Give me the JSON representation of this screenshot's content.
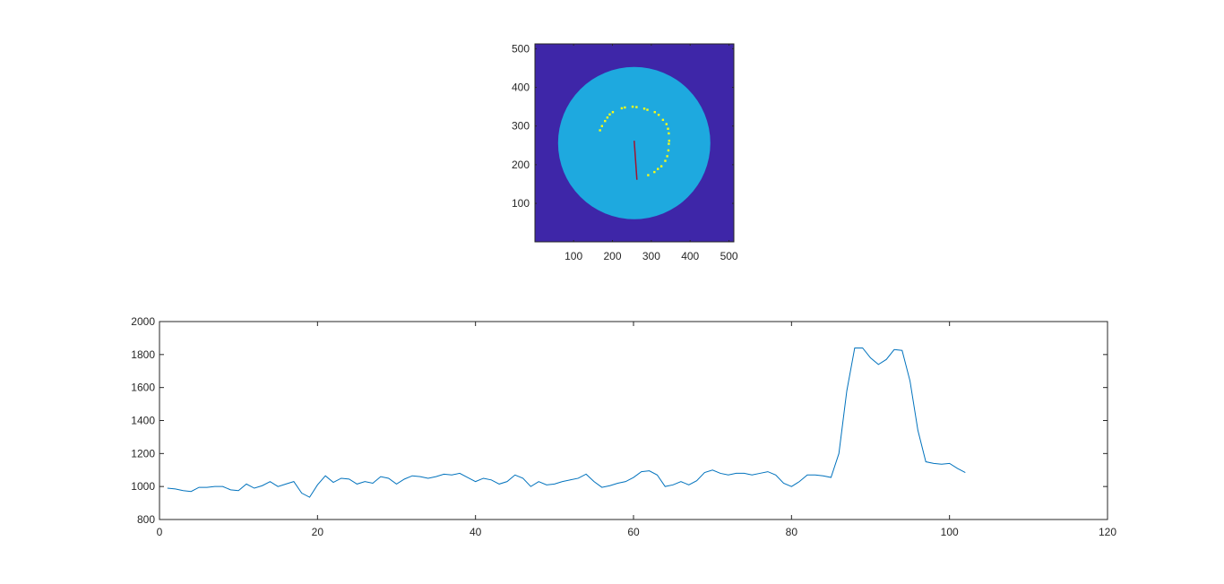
{
  "chart_data": [
    {
      "type": "heatmap",
      "title": "",
      "xlabel": "",
      "ylabel": "",
      "xlim": [
        0.5,
        512.5
      ],
      "ylim": [
        0.5,
        512.5
      ],
      "x_ticks": [
        100,
        200,
        300,
        400,
        500
      ],
      "y_ticks": [
        100,
        200,
        300,
        400,
        500
      ],
      "grid": false,
      "colors": {
        "background": "#3e26a8",
        "disk": "#1ea9df",
        "markers": "#f9fb15",
        "line": "#a2142f",
        "axis": "#262626"
      },
      "disk": {
        "center": [
          256,
          256
        ],
        "radius": 196
      },
      "marker_points": [
        [
          168,
          289
        ],
        [
          173,
          300
        ],
        [
          181,
          313
        ],
        [
          187,
          322
        ],
        [
          193,
          330
        ],
        [
          201,
          336
        ],
        [
          224,
          346
        ],
        [
          232,
          348
        ],
        [
          252,
          350
        ],
        [
          262,
          349
        ],
        [
          282,
          345
        ],
        [
          290,
          342
        ],
        [
          309,
          336
        ],
        [
          319,
          329
        ],
        [
          330,
          316
        ],
        [
          339,
          305
        ],
        [
          343,
          293
        ],
        [
          345,
          281
        ],
        [
          346,
          262
        ],
        [
          345,
          254
        ],
        [
          344,
          237
        ],
        [
          341,
          222
        ],
        [
          336,
          210
        ],
        [
          326,
          196
        ],
        [
          317,
          189
        ],
        [
          308,
          181
        ],
        [
          292,
          173
        ]
      ],
      "line_segment": [
        [
          256,
          262
        ],
        [
          263,
          161
        ]
      ]
    },
    {
      "type": "line",
      "title": "",
      "xlabel": "",
      "ylabel": "",
      "xlim": [
        0,
        120
      ],
      "ylim": [
        800,
        2000
      ],
      "x_ticks": [
        0,
        20,
        40,
        60,
        80,
        100,
        120
      ],
      "y_ticks": [
        800,
        1000,
        1200,
        1400,
        1600,
        1800,
        2000
      ],
      "grid": false,
      "colors": {
        "line": "#0072bd",
        "axis": "#262626"
      },
      "series": [
        {
          "x": [
            1,
            2,
            3,
            4,
            5,
            6,
            7,
            8,
            9,
            10,
            11,
            12,
            13,
            14,
            15,
            16,
            17,
            18,
            19,
            20,
            21,
            22,
            23,
            24,
            25,
            26,
            27,
            28,
            29,
            30,
            31,
            32,
            33,
            34,
            35,
            36,
            37,
            38,
            39,
            40,
            41,
            42,
            43,
            44,
            45,
            46,
            47,
            48,
            49,
            50,
            51,
            52,
            53,
            54,
            55,
            56,
            57,
            58,
            59,
            60,
            61,
            62,
            63,
            64,
            65,
            66,
            67,
            68,
            69,
            70,
            71,
            72,
            73,
            74,
            75,
            76,
            77,
            78,
            79,
            80,
            81,
            82,
            83,
            84,
            85,
            86,
            87,
            88,
            89,
            90,
            91,
            92,
            93,
            94,
            95,
            96,
            97,
            98,
            99,
            100,
            101,
            102
          ],
          "y": [
            990,
            985,
            975,
            970,
            995,
            995,
            1000,
            1000,
            980,
            975,
            1015,
            990,
            1005,
            1030,
            1000,
            1015,
            1030,
            960,
            935,
            1010,
            1065,
            1025,
            1050,
            1045,
            1015,
            1030,
            1020,
            1060,
            1050,
            1015,
            1045,
            1065,
            1060,
            1050,
            1060,
            1075,
            1070,
            1080,
            1055,
            1030,
            1050,
            1040,
            1015,
            1030,
            1070,
            1050,
            1000,
            1030,
            1010,
            1015,
            1030,
            1040,
            1050,
            1075,
            1030,
            995,
            1005,
            1020,
            1030,
            1055,
            1090,
            1095,
            1070,
            1000,
            1010,
            1030,
            1010,
            1035,
            1085,
            1100,
            1080,
            1070,
            1080,
            1080,
            1070,
            1080,
            1090,
            1070,
            1020,
            1000,
            1030,
            1070,
            1070,
            1065,
            1055,
            1200,
            1580,
            1840,
            1840,
            1780,
            1740,
            1770,
            1830,
            1825,
            1640,
            1340,
            1150,
            1140,
            1135,
            1140,
            1110,
            1085
          ]
        }
      ]
    }
  ]
}
